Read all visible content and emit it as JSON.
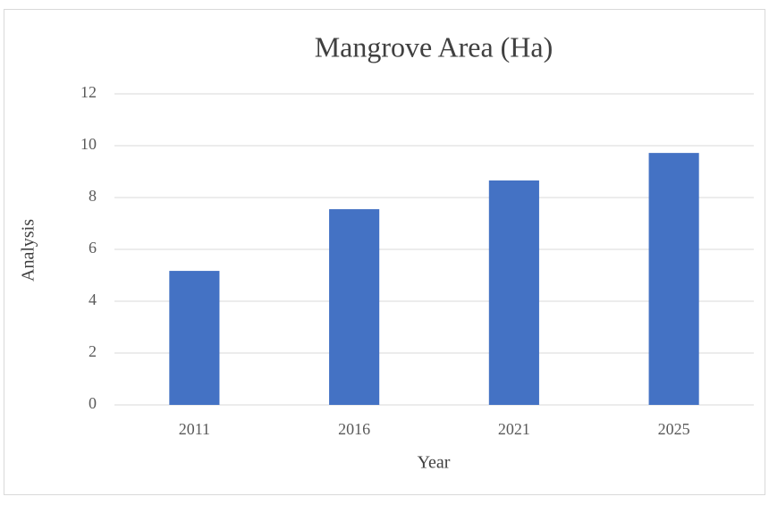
{
  "chart_data": {
    "type": "bar",
    "title": "Mangrove Area (Ha)",
    "x_label": "Year",
    "y_label": "Analysis",
    "categories": [
      "2011",
      "2016",
      "2021",
      "2025"
    ],
    "values": [
      5.17,
      7.55,
      8.66,
      9.72
    ],
    "color": "#4472c4",
    "ylim": [
      0,
      12
    ],
    "yticks": [
      0,
      2,
      4,
      6,
      8,
      10,
      12
    ],
    "grid": true
  }
}
